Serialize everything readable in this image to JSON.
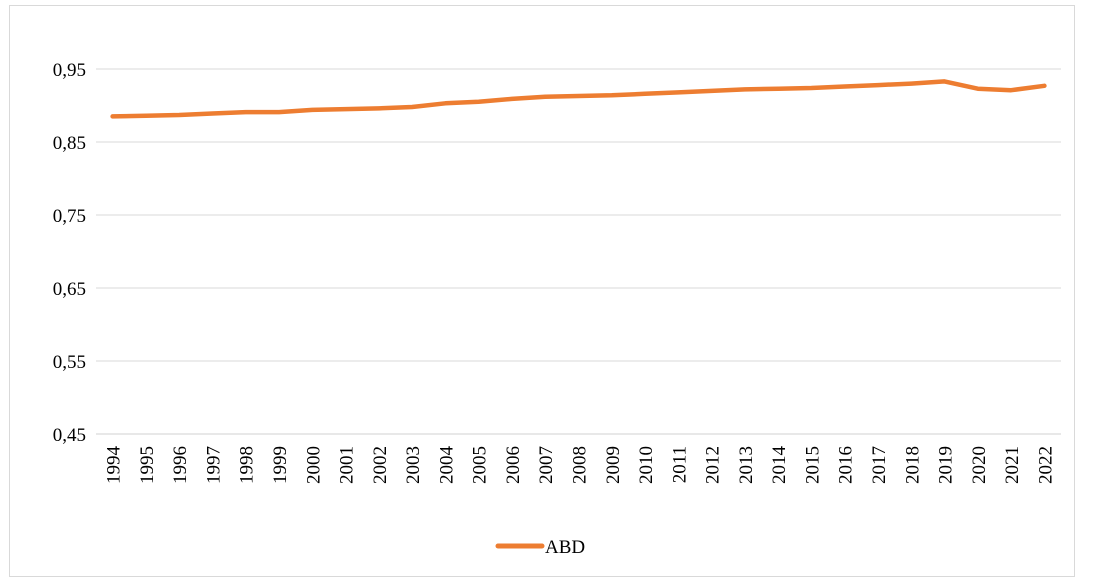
{
  "chart_data": {
    "type": "line",
    "x": [
      "1994",
      "1995",
      "1996",
      "1997",
      "1998",
      "1999",
      "2000",
      "2001",
      "2002",
      "2003",
      "2004",
      "2005",
      "2006",
      "2007",
      "2008",
      "2009",
      "2010",
      "2011",
      "2012",
      "2013",
      "2014",
      "2015",
      "2016",
      "2017",
      "2018",
      "2019",
      "2020",
      "2021",
      "2022"
    ],
    "series": [
      {
        "name": "ABD",
        "color": "#ED7D31",
        "values": [
          0.885,
          0.886,
          0.887,
          0.889,
          0.891,
          0.891,
          0.894,
          0.895,
          0.896,
          0.898,
          0.903,
          0.905,
          0.909,
          0.912,
          0.913,
          0.914,
          0.916,
          0.918,
          0.92,
          0.922,
          0.923,
          0.924,
          0.926,
          0.928,
          0.93,
          0.933,
          0.923,
          0.921,
          0.927
        ]
      }
    ],
    "y_ticks": [
      "0,45",
      "0,55",
      "0,65",
      "0,75",
      "0,85",
      "0,95"
    ],
    "ylim": [
      0.45,
      1.0
    ],
    "grid": true,
    "legend_position": "bottom"
  }
}
